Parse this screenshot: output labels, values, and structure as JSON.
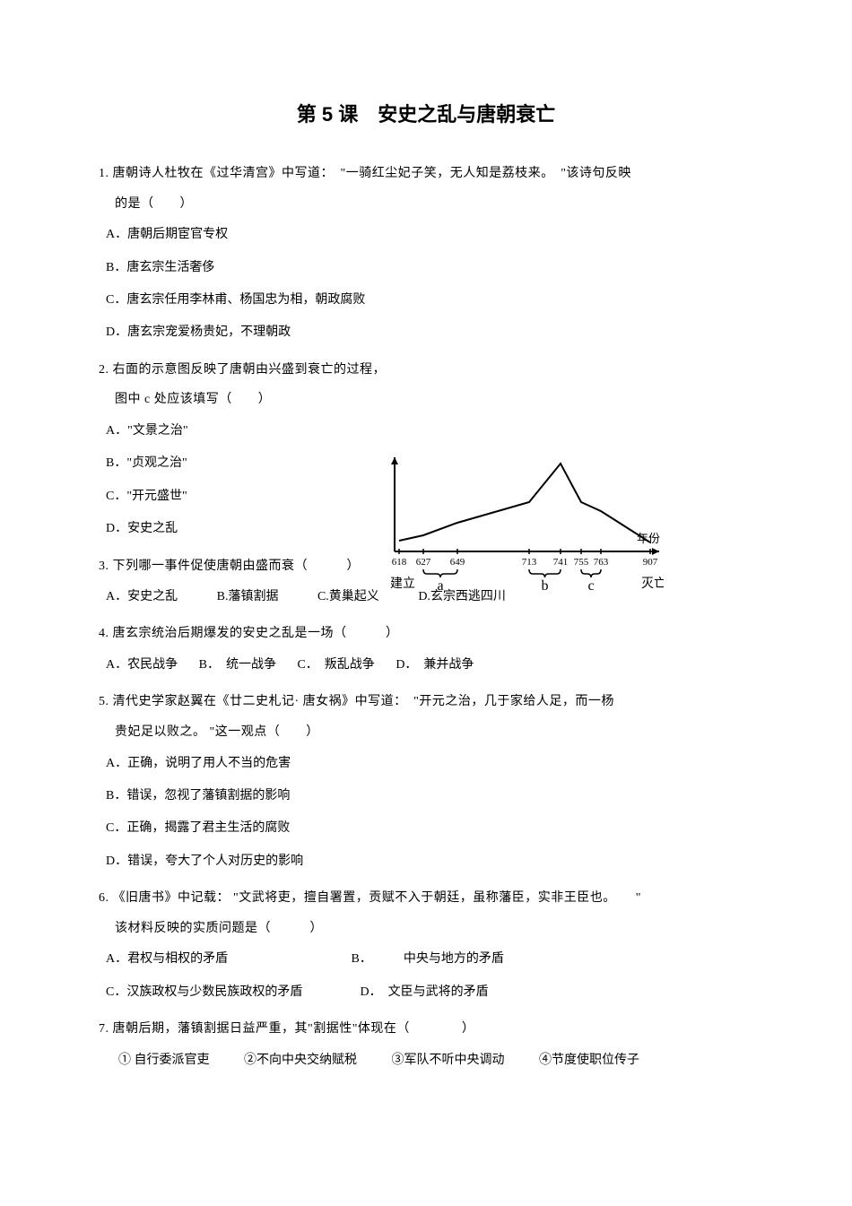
{
  "title": "第 5 课　安史之乱与唐朝衰亡",
  "questions": [
    {
      "num": "1.",
      "text": "唐朝诗人杜牧在《过华清宫》中写道：　\"一骑红尘妃子笑，无人知是荔枝来。　\"该诗句反映",
      "text2": "的是（　　）",
      "options": [
        "A．唐朝后期宦官专权",
        "B．唐玄宗生活奢侈",
        "C．唐玄宗任用李林甫、杨国忠为相，朝政腐败",
        "D．唐玄宗宠爱杨贵妃，不理朝政"
      ]
    },
    {
      "num": "2.",
      "text": "右面的示意图反映了唐朝由兴盛到衰亡的过程，",
      "text2": "图中 c 处应该填写（　　）",
      "options": [
        "A．\"文景之治\"",
        "B．\"贞观之治\"",
        "C．\"开元盛世\"",
        "D．安史之乱"
      ]
    },
    {
      "num": "3.",
      "text": "下列哪一事件促使唐朝由盛而衰（　　　）",
      "options_inline": [
        "A．安史之乱",
        "B.藩镇割据",
        "C.黄巢起义",
        "D.玄宗西逃四川"
      ]
    },
    {
      "num": "4.",
      "text": "唐玄宗统治后期爆发的安史之乱是一场（　　　）",
      "options_inline": [
        "A．农民战争",
        "B．　统一战争",
        "C．　叛乱战争",
        "D．　兼并战争"
      ]
    },
    {
      "num": "5.",
      "text": "清代史学家赵翼在《廿二史札记· 唐女祸》中写道：　\"开元之治，几于家给人足，而一杨",
      "text2": "贵妃足以败之。 \"这一观点（　　）",
      "options": [
        "A．正确，说明了用人不当的危害",
        "B．错误，忽视了藩镇割据的影响",
        "C．正确，揭露了君主生活的腐败",
        "D．错误，夸大了个人对历史的影响"
      ]
    },
    {
      "num": "6.",
      "text": "《旧唐书》中记载： \"文武将吏，擅自署置，贡赋不入于朝廷，虽称藩臣，实非王臣也。　　\"",
      "text2": "该材料反映的实质问题是（　　　）",
      "options_2col": [
        [
          "A．君权与相权的矛盾",
          "B．　　　中央与地方的矛盾"
        ],
        [
          "C．汉族政权与少数民族政权的矛盾",
          "D．　文臣与武将的矛盾"
        ]
      ]
    },
    {
      "num": "7.",
      "text": "唐朝后期，藩镇割据日益严重，其\"割据性\"体现在（　　　　）",
      "sub_items": [
        "① 自行委派官吏",
        "②不向中央交纳赋税",
        "③军队不听中央调动",
        "④节度使职位传子"
      ]
    }
  ],
  "chart": {
    "x_values": [
      618,
      627,
      649,
      713,
      741,
      755,
      763,
      907
    ],
    "x_positions": [
      15,
      42,
      80,
      160,
      195,
      218,
      240,
      295
    ],
    "y_values": [
      12,
      18,
      32,
      55,
      98,
      55,
      45,
      10
    ],
    "labels": {
      "left": "建立",
      "right": "灭亡",
      "year": "年份",
      "a": "a",
      "b": "b",
      "c": "c"
    },
    "colors": {
      "line": "#000000",
      "text": "#000000",
      "bg": "#ffffff"
    },
    "line_width": 2,
    "font_size": 13
  }
}
